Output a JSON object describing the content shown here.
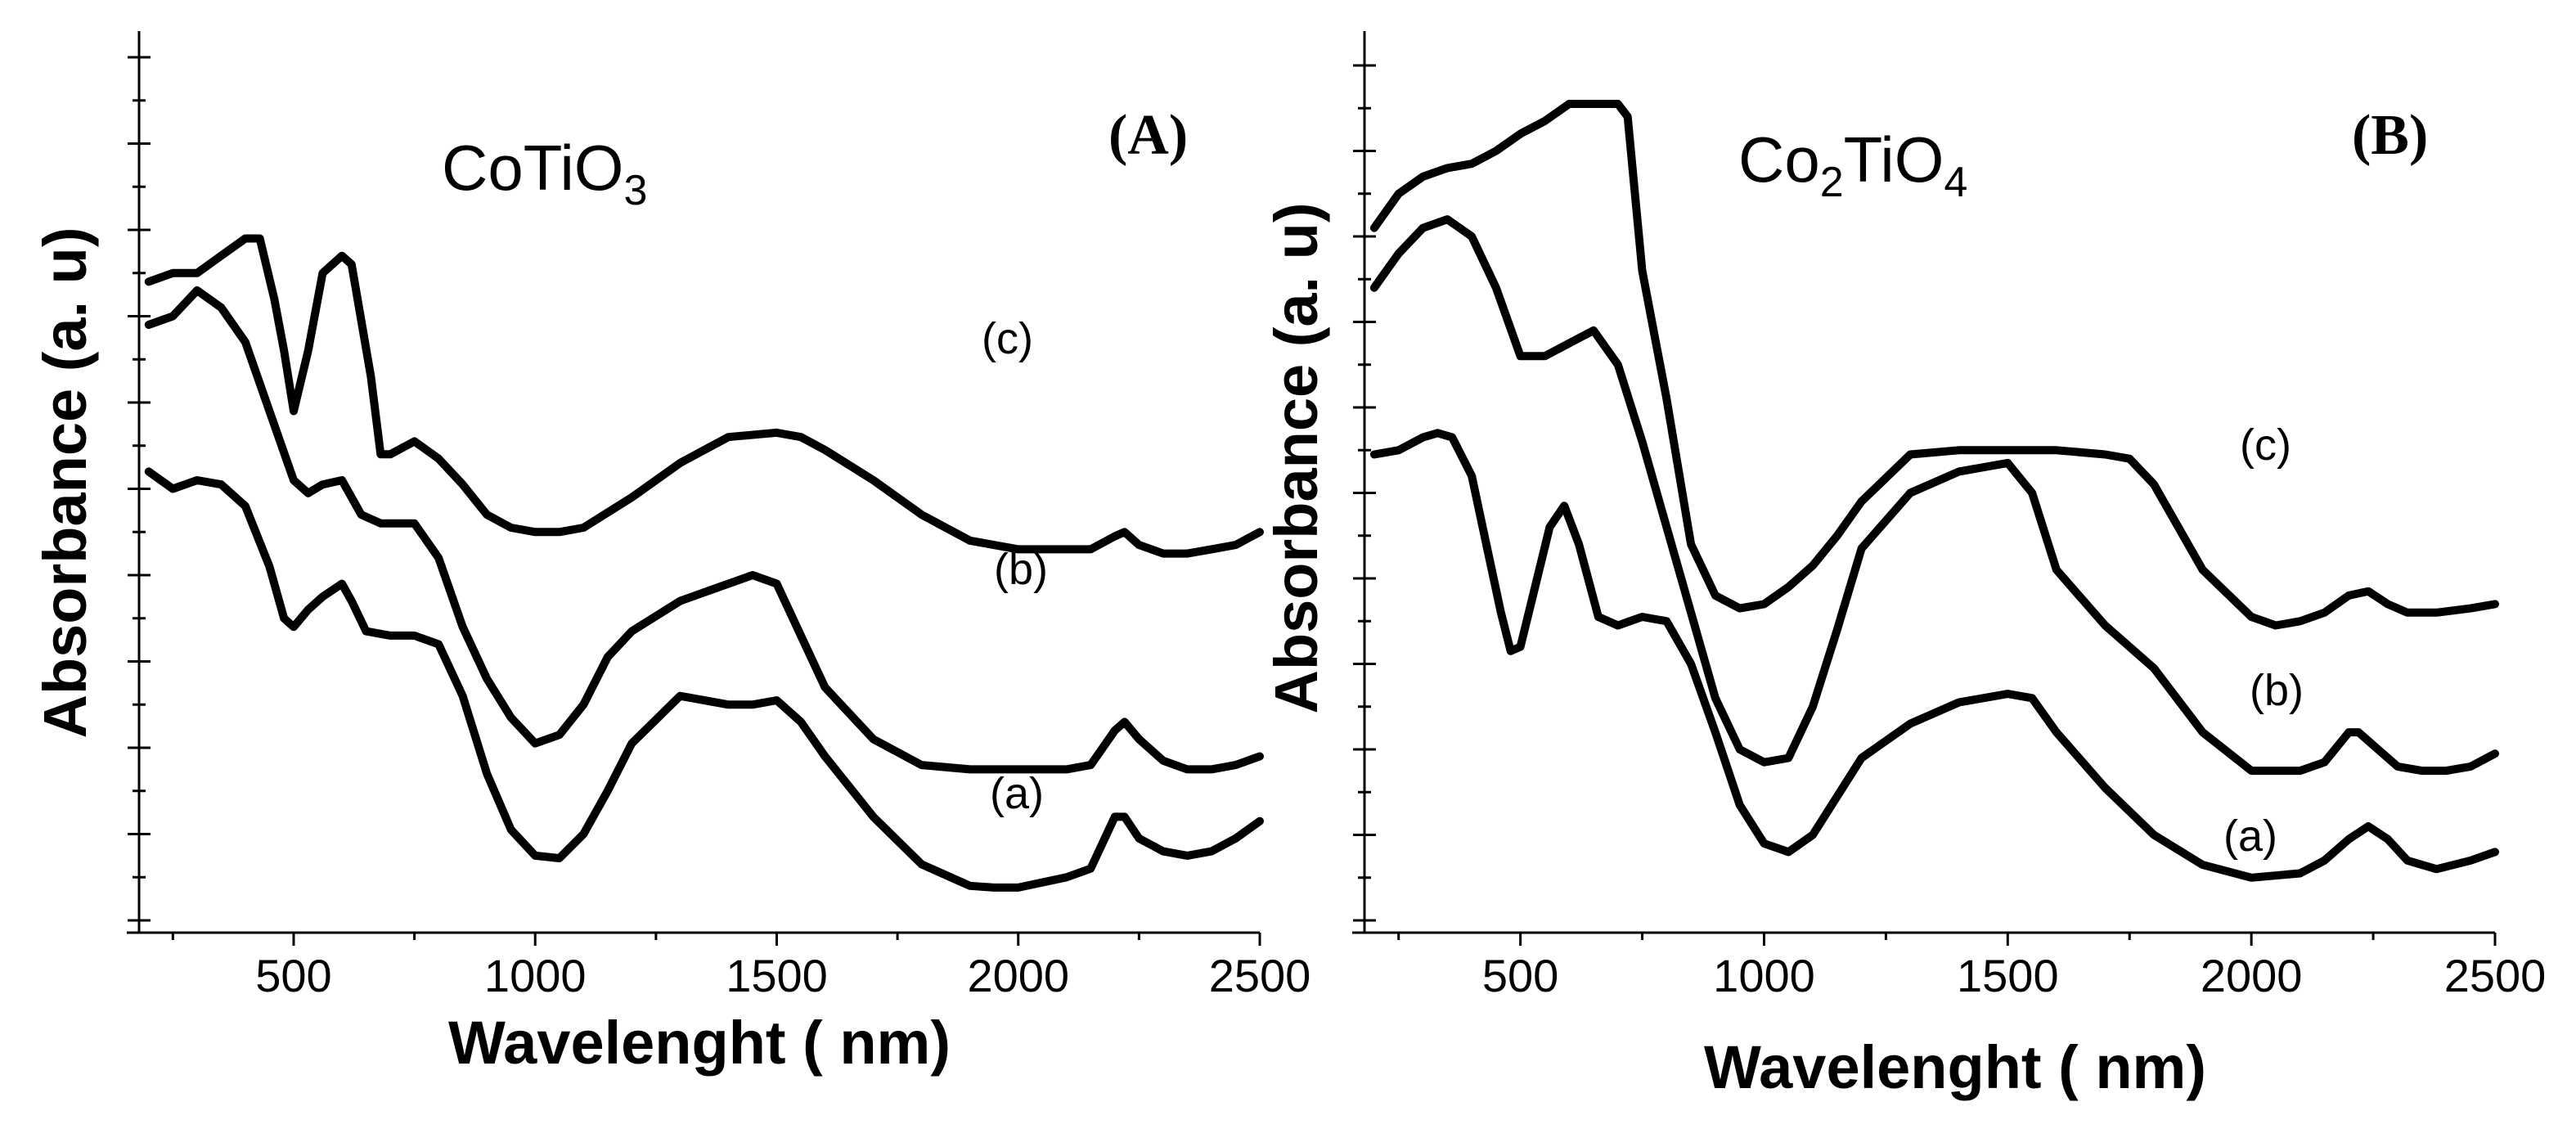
{
  "chart_data": [
    {
      "type": "line",
      "panel_label": "(A)",
      "title_main": "CoTiO",
      "title_sub": "3",
      "xlabel": "Wavelenght ( nm)",
      "ylabel": "Absorbance (a. u)",
      "xlim": [
        180,
        2500
      ],
      "ylim": [
        0,
        10
      ],
      "xticks": [
        500,
        1000,
        1500,
        2000,
        2500
      ],
      "tick_labels": [
        "500",
        "1000",
        "1500",
        "2000",
        "2500"
      ],
      "yticks_unlabeled": true,
      "series": [
        {
          "name": "(a)",
          "x": [
            200,
            250,
            300,
            350,
            400,
            450,
            480,
            500,
            530,
            560,
            600,
            620,
            650,
            700,
            750,
            800,
            850,
            900,
            950,
            1000,
            1050,
            1100,
            1150,
            1200,
            1300,
            1400,
            1450,
            1500,
            1550,
            1600,
            1700,
            1800,
            1900,
            1950,
            2000,
            2100,
            2150,
            2200,
            2220,
            2250,
            2300,
            2350,
            2400,
            2450,
            2500
          ],
          "y": [
            5.2,
            5.0,
            5.1,
            5.05,
            4.8,
            4.1,
            3.5,
            3.4,
            3.6,
            3.75,
            3.9,
            3.7,
            3.35,
            3.3,
            3.3,
            3.2,
            2.6,
            1.7,
            1.05,
            0.75,
            0.72,
            1.0,
            1.5,
            2.05,
            2.6,
            2.5,
            2.5,
            2.55,
            2.3,
            1.9,
            1.2,
            0.65,
            0.4,
            0.38,
            0.38,
            0.5,
            0.6,
            1.2,
            1.2,
            0.95,
            0.8,
            0.75,
            0.8,
            0.95,
            1.15
          ]
        },
        {
          "name": "(b)",
          "x": [
            200,
            250,
            300,
            350,
            400,
            450,
            500,
            530,
            560,
            600,
            640,
            680,
            750,
            800,
            850,
            900,
            950,
            1000,
            1050,
            1100,
            1150,
            1200,
            1300,
            1400,
            1450,
            1500,
            1550,
            1600,
            1700,
            1800,
            1900,
            1950,
            2000,
            2100,
            2150,
            2200,
            2220,
            2250,
            2300,
            2350,
            2400,
            2450,
            2500
          ],
          "y": [
            6.9,
            7.0,
            7.3,
            7.1,
            6.7,
            5.9,
            5.1,
            4.95,
            5.05,
            5.1,
            4.7,
            4.6,
            4.6,
            4.2,
            3.4,
            2.8,
            2.35,
            2.05,
            2.15,
            2.5,
            3.05,
            3.35,
            3.7,
            3.9,
            4.0,
            3.9,
            3.3,
            2.7,
            2.1,
            1.8,
            1.75,
            1.75,
            1.75,
            1.75,
            1.8,
            2.2,
            2.3,
            2.1,
            1.85,
            1.75,
            1.75,
            1.8,
            1.9
          ]
        },
        {
          "name": "(c)",
          "x": [
            200,
            250,
            300,
            350,
            400,
            430,
            460,
            480,
            500,
            530,
            560,
            600,
            620,
            660,
            680,
            700,
            750,
            800,
            850,
            900,
            950,
            1000,
            1050,
            1100,
            1200,
            1300,
            1400,
            1500,
            1550,
            1600,
            1700,
            1800,
            1900,
            2000,
            2100,
            2150,
            2200,
            2220,
            2250,
            2300,
            2350,
            2400,
            2450,
            2500
          ],
          "y": [
            7.4,
            7.5,
            7.5,
            7.7,
            7.9,
            7.9,
            7.2,
            6.6,
            5.9,
            6.6,
            7.5,
            7.7,
            7.6,
            6.3,
            5.4,
            5.4,
            5.55,
            5.35,
            5.05,
            4.7,
            4.55,
            4.5,
            4.5,
            4.55,
            4.9,
            5.3,
            5.6,
            5.65,
            5.6,
            5.45,
            5.1,
            4.7,
            4.4,
            4.3,
            4.3,
            4.3,
            4.45,
            4.5,
            4.35,
            4.25,
            4.25,
            4.3,
            4.35,
            4.5
          ]
        }
      ],
      "annotations": [
        "(a)",
        "(b)",
        "(c)"
      ]
    },
    {
      "type": "line",
      "panel_label": "(B)",
      "title_main1": "Co",
      "title_sub1": "2",
      "title_main2": "TiO",
      "title_sub2": "4",
      "xlabel": "Wavelenght ( nm)",
      "ylabel": "Absorbance (a. u)",
      "xlim": [
        180,
        2500
      ],
      "ylim": [
        0,
        10
      ],
      "xticks": [
        500,
        1000,
        1500,
        2000,
        2500
      ],
      "tick_labels": [
        "500",
        "1000",
        "1500",
        "2000",
        "2500"
      ],
      "yticks_unlabeled": true,
      "series": [
        {
          "name": "(a)",
          "x": [
            200,
            250,
            300,
            330,
            360,
            400,
            430,
            460,
            480,
            500,
            530,
            560,
            590,
            620,
            660,
            700,
            750,
            800,
            850,
            900,
            950,
            1000,
            1050,
            1100,
            1200,
            1300,
            1400,
            1500,
            1550,
            1600,
            1700,
            1800,
            1900,
            2000,
            2100,
            2150,
            2200,
            2240,
            2280,
            2320,
            2380,
            2450,
            2500
          ],
          "y": [
            5.45,
            5.5,
            5.65,
            5.7,
            5.65,
            5.2,
            4.4,
            3.6,
            3.15,
            3.2,
            3.9,
            4.6,
            4.85,
            4.4,
            3.55,
            3.45,
            3.55,
            3.5,
            3.0,
            2.2,
            1.35,
            0.9,
            0.8,
            1.0,
            1.9,
            2.3,
            2.55,
            2.65,
            2.6,
            2.2,
            1.55,
            1.0,
            0.65,
            0.5,
            0.55,
            0.7,
            0.95,
            1.1,
            0.95,
            0.7,
            0.6,
            0.7,
            0.8
          ]
        },
        {
          "name": "(b)",
          "x": [
            200,
            250,
            300,
            350,
            400,
            450,
            500,
            550,
            600,
            650,
            700,
            750,
            800,
            850,
            900,
            950,
            1000,
            1050,
            1100,
            1150,
            1200,
            1300,
            1400,
            1500,
            1550,
            1600,
            1700,
            1800,
            1900,
            2000,
            2100,
            2150,
            2200,
            2220,
            2260,
            2300,
            2350,
            2400,
            2450,
            2500
          ],
          "y": [
            7.4,
            7.8,
            8.1,
            8.2,
            8.0,
            7.4,
            6.6,
            6.6,
            6.75,
            6.9,
            6.5,
            5.6,
            4.6,
            3.6,
            2.6,
            2.0,
            1.85,
            1.9,
            2.5,
            3.4,
            4.35,
            5.0,
            5.25,
            5.35,
            5.0,
            4.1,
            3.45,
            2.95,
            2.2,
            1.75,
            1.75,
            1.85,
            2.2,
            2.2,
            2.0,
            1.8,
            1.75,
            1.75,
            1.8,
            1.95
          ]
        },
        {
          "name": "(c)",
          "x": [
            200,
            250,
            300,
            350,
            400,
            450,
            500,
            550,
            600,
            650,
            700,
            720,
            750,
            800,
            850,
            900,
            950,
            1000,
            1050,
            1100,
            1150,
            1200,
            1300,
            1400,
            1500,
            1600,
            1700,
            1750,
            1800,
            1900,
            2000,
            2050,
            2100,
            2150,
            2200,
            2240,
            2280,
            2320,
            2380,
            2450,
            2500
          ],
          "y": [
            8.1,
            8.5,
            8.7,
            8.8,
            8.85,
            9.0,
            9.2,
            9.35,
            9.55,
            9.55,
            9.55,
            9.4,
            7.6,
            6.1,
            4.4,
            3.8,
            3.65,
            3.7,
            3.9,
            4.15,
            4.5,
            4.9,
            5.45,
            5.5,
            5.5,
            5.5,
            5.45,
            5.4,
            5.1,
            4.1,
            3.55,
            3.45,
            3.5,
            3.6,
            3.8,
            3.85,
            3.7,
            3.6,
            3.6,
            3.65,
            3.7
          ]
        }
      ],
      "annotations": [
        "(a)",
        "(b)",
        "(c)"
      ]
    }
  ]
}
